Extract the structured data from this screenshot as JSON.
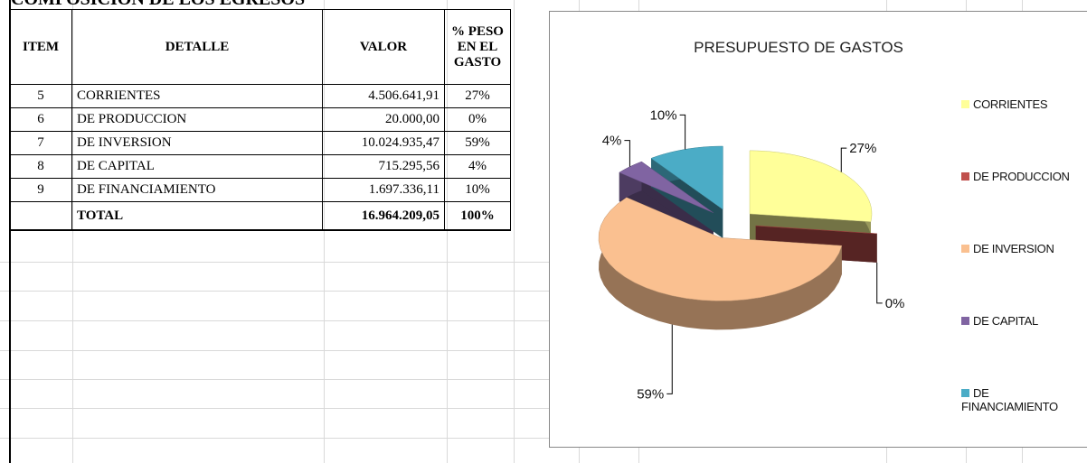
{
  "header": {
    "title": "COMPOSICION DE LOS EGRESOS"
  },
  "table": {
    "header": [
      "ITEM",
      "DETALLE",
      "VALOR",
      "% PESO EN EL GASTO"
    ],
    "rows": [
      [
        "5",
        "CORRIENTES",
        "4.506.641,91",
        "27%"
      ],
      [
        "6",
        "DE PRODUCCION",
        "20.000,00",
        "0%"
      ],
      [
        "7",
        "DE INVERSION",
        "10.024.935,47",
        "59%"
      ],
      [
        "8",
        "DE CAPITAL",
        "715.295,56",
        "4%"
      ],
      [
        "9",
        "DE FINANCIAMIENTO",
        "1.697.336,11",
        "10%"
      ],
      [
        "",
        "TOTAL",
        "16.964.209,05",
        "100%"
      ]
    ]
  },
  "chart_data": {
    "type": "pie",
    "title": "PRESUPUESTO DE GASTOS",
    "categories": [
      "CORRIENTES",
      "DE PRODUCCION",
      "DE INVERSION",
      "DE CAPITAL",
      "DE FINANCIAMIENTO"
    ],
    "values": [
      27,
      0,
      59,
      4,
      10
    ],
    "value_labels": [
      "27%",
      "0%",
      "59%",
      "4%",
      "10%"
    ],
    "colors": [
      "#ffff99",
      "#c0504d",
      "#fac090",
      "#8064a2",
      "#4bacc6"
    ],
    "legend": "right"
  }
}
